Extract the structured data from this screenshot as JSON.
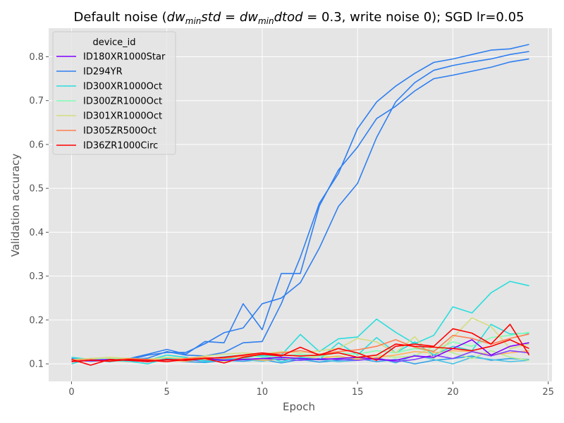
{
  "chart_data": {
    "type": "line",
    "title": "Default noise ($dw_{min}std = dw_{min}dtod = 0.3$, write noise 0); SGD lr=0.05",
    "title_parts": {
      "prefix": "Default noise (",
      "math_1_base": "dw",
      "math_1_sub": "min",
      "math_1_rest": "std = ",
      "math_2_base": "dw",
      "math_2_sub": "min",
      "math_2_rest": "dtod",
      "suffix": " = 0.3, write noise 0); SGD lr=0.05"
    },
    "xlabel": "Epoch",
    "ylabel": "Validation accuracy",
    "xlim": [
      -1.2,
      25.2
    ],
    "ylim": [
      0.06,
      0.865
    ],
    "xticks": [
      0,
      5,
      10,
      15,
      20,
      25
    ],
    "xtick_labels": [
      "0",
      "5",
      "10",
      "15",
      "20",
      "25"
    ],
    "yticks": [
      0.1,
      0.2,
      0.3,
      0.4,
      0.5,
      0.6,
      0.7,
      0.8
    ],
    "ytick_labels": [
      "0.1",
      "0.2",
      "0.3",
      "0.4",
      "0.5",
      "0.6",
      "0.7",
      "0.8"
    ],
    "grid": true,
    "legend_placement": "upper-left",
    "legend_title": "device_id",
    "legend": [
      {
        "label": "ID180XR1000Star",
        "color": "#8000ff"
      },
      {
        "label": "ID294YR",
        "color": "#2f7ff0"
      },
      {
        "label": "ID300XR1000Oct",
        "color": "#2adddd"
      },
      {
        "label": "ID300ZR1000Oct",
        "color": "#80ffb4"
      },
      {
        "label": "ID301XR1000Oct",
        "color": "#d4dd80"
      },
      {
        "label": "ID305ZR500Oct",
        "color": "#ff7f4e"
      },
      {
        "label": "ID36ZR1000Circ",
        "color": "#ff0000"
      }
    ],
    "x": [
      0,
      1,
      2,
      3,
      4,
      5,
      6,
      7,
      8,
      9,
      10,
      11,
      12,
      13,
      14,
      15,
      16,
      17,
      18,
      19,
      20,
      21,
      22,
      23,
      24
    ],
    "series": [
      {
        "name": "ID294YR",
        "color": "#2f7ff0",
        "values": [
          0.112,
          0.11,
          0.105,
          0.112,
          0.122,
          0.133,
          0.122,
          0.151,
          0.148,
          0.237,
          0.178,
          0.306,
          0.306,
          0.46,
          0.542,
          0.594,
          0.659,
          0.687,
          0.722,
          0.75,
          0.758,
          0.767,
          0.776,
          0.788,
          0.795
        ]
      },
      {
        "name": "ID294YR",
        "color": "#2f7ff0",
        "values": [
          0.11,
          0.108,
          0.11,
          0.109,
          0.12,
          0.126,
          0.126,
          0.146,
          0.171,
          0.182,
          0.237,
          0.25,
          0.285,
          0.364,
          0.459,
          0.511,
          0.616,
          0.697,
          0.741,
          0.769,
          0.78,
          0.788,
          0.795,
          0.805,
          0.812
        ]
      },
      {
        "name": "ID294YR",
        "color": "#2f7ff0",
        "values": [
          0.11,
          0.107,
          0.107,
          0.11,
          0.113,
          0.128,
          0.12,
          0.118,
          0.126,
          0.148,
          0.151,
          0.237,
          0.343,
          0.466,
          0.534,
          0.636,
          0.697,
          0.733,
          0.762,
          0.787,
          0.795,
          0.805,
          0.815,
          0.818,
          0.828
        ]
      },
      {
        "name": "ID300XR1000Oct",
        "color": "#2adddd",
        "values": [
          0.1,
          0.112,
          0.108,
          0.106,
          0.1,
          0.113,
          0.108,
          0.11,
          0.116,
          0.12,
          0.118,
          0.12,
          0.167,
          0.128,
          0.157,
          0.161,
          0.202,
          0.172,
          0.146,
          0.165,
          0.23,
          0.216,
          0.262,
          0.288,
          0.278
        ]
      },
      {
        "name": "ID300XR1000Oct",
        "color": "#2adddd",
        "values": [
          0.115,
          0.11,
          0.105,
          0.11,
          0.108,
          0.12,
          0.115,
          0.105,
          0.11,
          0.113,
          0.12,
          0.105,
          0.115,
          0.11,
          0.148,
          0.12,
          0.16,
          0.125,
          0.15,
          0.12,
          0.14,
          0.13,
          0.19,
          0.168,
          0.17
        ]
      },
      {
        "name": "ID300ZR1000Oct",
        "color": "#80ffb4",
        "values": [
          0.108,
          0.112,
          0.11,
          0.113,
          0.11,
          0.115,
          0.112,
          0.11,
          0.115,
          0.12,
          0.115,
          0.118,
          0.122,
          0.118,
          0.125,
          0.122,
          0.13,
          0.125,
          0.135,
          0.13,
          0.15,
          0.14,
          0.16,
          0.165,
          0.172
        ]
      },
      {
        "name": "ID301XR1000Oct",
        "color": "#d4dd80",
        "values": [
          0.11,
          0.112,
          0.115,
          0.112,
          0.11,
          0.115,
          0.112,
          0.118,
          0.122,
          0.125,
          0.122,
          0.128,
          0.125,
          0.13,
          0.135,
          0.158,
          0.15,
          0.125,
          0.162,
          0.112,
          0.16,
          0.205,
          0.185,
          0.135,
          0.145
        ]
      },
      {
        "name": "ID305ZR500Oct",
        "color": "#ff7f4e",
        "values": [
          0.108,
          0.11,
          0.108,
          0.112,
          0.11,
          0.108,
          0.112,
          0.115,
          0.112,
          0.118,
          0.122,
          0.125,
          0.13,
          0.122,
          0.128,
          0.132,
          0.14,
          0.155,
          0.138,
          0.128,
          0.165,
          0.158,
          0.145,
          0.158,
          0.168
        ]
      },
      {
        "name": "ID180XR1000Star",
        "color": "#8000ff",
        "values": [
          0.105,
          0.108,
          0.11,
          0.108,
          0.105,
          0.11,
          0.108,
          0.112,
          0.108,
          0.11,
          0.112,
          0.115,
          0.112,
          0.11,
          0.112,
          0.115,
          0.11,
          0.108,
          0.118,
          0.115,
          0.135,
          0.155,
          0.12,
          0.14,
          0.148
        ]
      },
      {
        "name": "ID36ZR1000Circ",
        "color": "#ff0000",
        "values": [
          0.11,
          0.097,
          0.11,
          0.108,
          0.105,
          0.11,
          0.108,
          0.112,
          0.115,
          0.12,
          0.125,
          0.12,
          0.118,
          0.12,
          0.135,
          0.125,
          0.108,
          0.14,
          0.145,
          0.14,
          0.18,
          0.17,
          0.145,
          0.19,
          0.12
        ]
      },
      {
        "name": "ID36ZR1000Circ",
        "color": "#ff0000",
        "values": [
          0.105,
          0.108,
          0.106,
          0.11,
          0.108,
          0.105,
          0.11,
          0.112,
          0.102,
          0.115,
          0.122,
          0.118,
          0.138,
          0.12,
          0.125,
          0.115,
          0.12,
          0.145,
          0.14,
          0.138,
          0.135,
          0.13,
          0.14,
          0.155,
          0.135
        ]
      }
    ],
    "noise_series": [
      {
        "color": "#2fa0e8",
        "values": [
          0.108,
          0.112,
          0.11,
          0.106,
          0.108,
          0.11,
          0.105,
          0.103,
          0.108,
          0.106,
          0.11,
          0.102,
          0.11,
          0.104,
          0.108,
          0.112,
          0.105,
          0.11,
          0.1,
          0.108,
          0.112,
          0.118,
          0.108,
          0.112,
          0.11
        ]
      },
      {
        "color": "#49c3e3",
        "values": [
          0.112,
          0.11,
          0.108,
          0.112,
          0.106,
          0.112,
          0.11,
          0.108,
          0.112,
          0.11,
          0.106,
          0.112,
          0.108,
          0.11,
          0.105,
          0.108,
          0.115,
          0.102,
          0.12,
          0.11,
          0.1,
          0.115,
          0.11,
          0.105,
          0.108
        ]
      },
      {
        "color": "#b3f08c",
        "values": [
          0.11,
          0.108,
          0.112,
          0.11,
          0.112,
          0.108,
          0.112,
          0.11,
          0.106,
          0.112,
          0.11,
          0.115,
          0.112,
          0.118,
          0.115,
          0.112,
          0.12,
          0.115,
          0.118,
          0.14,
          0.125,
          0.112,
          0.13,
          0.115,
          0.108
        ]
      },
      {
        "color": "#ffb35a",
        "values": [
          0.106,
          0.11,
          0.108,
          0.105,
          0.11,
          0.108,
          0.106,
          0.11,
          0.108,
          0.112,
          0.108,
          0.11,
          0.115,
          0.112,
          0.118,
          0.11,
          0.115,
          0.12,
          0.128,
          0.125,
          0.13,
          0.128,
          0.12,
          0.125,
          0.13
        ]
      },
      {
        "color": "#8040ff",
        "values": [
          0.108,
          0.106,
          0.108,
          0.11,
          0.106,
          0.108,
          0.11,
          0.106,
          0.108,
          0.11,
          0.112,
          0.11,
          0.108,
          0.112,
          0.11,
          0.108,
          0.112,
          0.105,
          0.11,
          0.12,
          0.112,
          0.128,
          0.118,
          0.13,
          0.125
        ]
      }
    ]
  }
}
